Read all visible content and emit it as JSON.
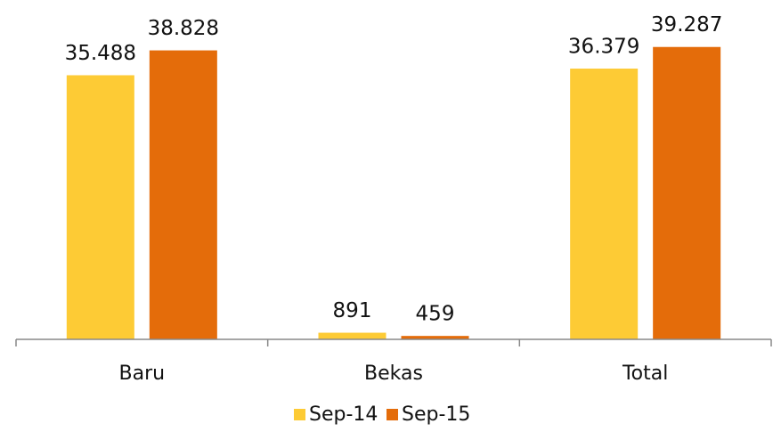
{
  "chart_data": {
    "type": "bar",
    "categories": [
      "Baru",
      "Bekas",
      "Total"
    ],
    "series": [
      {
        "name": "Sep-14",
        "color": "#fdcb35",
        "values": [
          35488,
          891,
          36379
        ],
        "value_labels": [
          "35.488",
          "891",
          "36.379"
        ]
      },
      {
        "name": "Sep-15",
        "color": "#e46c0a",
        "values": [
          38828,
          459,
          39287
        ],
        "value_labels": [
          "38.828",
          "459",
          "39.287"
        ]
      }
    ],
    "ylim": [
      0,
      45000
    ],
    "legend": "bottom"
  }
}
